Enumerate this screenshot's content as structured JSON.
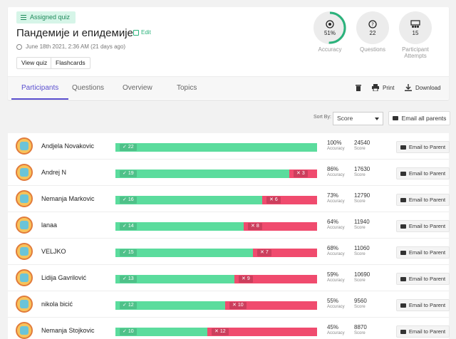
{
  "header": {
    "badge": "Assigned quiz",
    "title": "Пандемије и епидемије",
    "edit_label": "Edit",
    "date": "June 18th 2021, 2:36 AM (21 days ago)",
    "view_quiz": "View quiz",
    "flashcards": "Flashcards"
  },
  "stats": {
    "accuracy_value": "51%",
    "accuracy_fraction": 0.51,
    "accuracy_label": "Accuracy",
    "questions_value": "22",
    "questions_label": "Questions",
    "attempts_value": "15",
    "attempts_label": "Participant Attempts",
    "accent": "#2ab27b"
  },
  "tabs": [
    {
      "label": "Participants",
      "active": true
    },
    {
      "label": "Questions",
      "active": false
    },
    {
      "label": "Overview",
      "active": false
    },
    {
      "label": "Topics",
      "active": false
    }
  ],
  "actions": {
    "print": "Print",
    "download": "Download"
  },
  "sort": {
    "label": "Sort By:",
    "value": "Score",
    "email_all": "Email all parents"
  },
  "row_labels": {
    "accuracy": "Accuracy",
    "score": "Score",
    "email": "Email to Parent"
  },
  "participants": [
    {
      "name": "Andjela Novakovic",
      "correct": 22,
      "wrong": 0,
      "accuracy": "100%",
      "score": "24540"
    },
    {
      "name": "Andrej N",
      "correct": 19,
      "wrong": 3,
      "accuracy": "86%",
      "score": "17630"
    },
    {
      "name": "Nemanja Markovic",
      "correct": 16,
      "wrong": 6,
      "accuracy": "73%",
      "score": "12790"
    },
    {
      "name": "lanaa",
      "correct": 14,
      "wrong": 8,
      "accuracy": "64%",
      "score": "11940"
    },
    {
      "name": "VELJKO",
      "correct": 15,
      "wrong": 7,
      "accuracy": "68%",
      "score": "11060"
    },
    {
      "name": "Lidija Gavrilović",
      "correct": 13,
      "wrong": 9,
      "accuracy": "59%",
      "score": "10690"
    },
    {
      "name": "nikola bicić",
      "correct": 12,
      "wrong": 10,
      "accuracy": "55%",
      "score": "9560"
    },
    {
      "name": "Nemanja Stojkovic",
      "correct": 10,
      "wrong": 12,
      "accuracy": "45%",
      "score": "8870"
    }
  ]
}
